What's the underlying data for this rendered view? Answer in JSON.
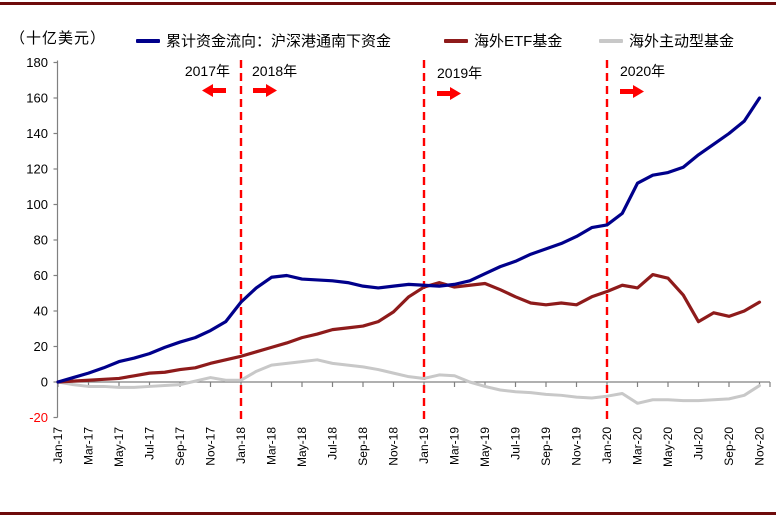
{
  "colors": {
    "accent_red": "#FF0000",
    "border_maroon": "#6E0B0B",
    "axis_gray": "#808080",
    "negative_tick_red": "#FF0000",
    "text_black": "#000000"
  },
  "header": {
    "unit_label": "（十亿美元）"
  },
  "legend": {
    "items": [
      {
        "label": "累计资金流向：沪深港通南下资金",
        "color": "#00008B"
      },
      {
        "label": "海外ETF基金",
        "color": "#8E1B1B"
      },
      {
        "label": "海外主动型基金",
        "color": "#C8C8C8"
      }
    ]
  },
  "annotations": {
    "y2017": {
      "label": "2017年",
      "arrow": "left"
    },
    "y2018": {
      "label": "2018年",
      "arrow": "right"
    },
    "y2019": {
      "label": "2019年",
      "arrow": "right"
    },
    "y2020": {
      "label": "2020年",
      "arrow": "right"
    }
  },
  "chart_data": {
    "type": "line",
    "title": "",
    "unit_label": "（十亿美元）",
    "ylim": [
      -20,
      180
    ],
    "ytick_step": 20,
    "grid": false,
    "legend_position": "top",
    "x_span": "Jan-17 to Nov-20, monthly points, labels every 2 months",
    "x_tick_labels": [
      "Jan-17",
      "Mar-17",
      "May-17",
      "Jul-17",
      "Sep-17",
      "Nov-17",
      "Jan-18",
      "Mar-18",
      "May-18",
      "Jul-18",
      "Sep-18",
      "Nov-18",
      "Jan-19",
      "Mar-19",
      "May-19",
      "Jul-19",
      "Sep-19",
      "Nov-19",
      "Jan-20",
      "Mar-20",
      "May-20",
      "Jul-20",
      "Sep-20",
      "Nov-20"
    ],
    "series": [
      {
        "name": "累计资金流向：沪深港通南下资金",
        "color": "#00008B",
        "monthly_values": [
          0,
          2.5,
          5,
          8,
          11.5,
          13.5,
          16,
          19.5,
          22.5,
          25,
          29,
          34,
          45,
          53,
          59,
          60,
          58,
          57.5,
          57,
          56,
          54,
          53,
          54,
          55,
          54.5,
          54,
          55,
          57,
          61,
          65,
          68,
          72,
          75,
          78,
          82,
          87,
          88.5,
          95,
          112,
          116.5,
          118,
          121,
          128,
          134,
          140,
          147,
          160
        ]
      },
      {
        "name": "海外ETF基金",
        "color": "#8E1B1B",
        "monthly_values": [
          0,
          0.5,
          1,
          1.5,
          2,
          3.5,
          5,
          5.5,
          7,
          8,
          10.5,
          12.5,
          14.5,
          17,
          19.5,
          22,
          25,
          27,
          29.5,
          30.5,
          31.5,
          34,
          39.5,
          48,
          53.5,
          56,
          53.5,
          54.5,
          55.5,
          52,
          48,
          44.5,
          43.5,
          44.5,
          43.5,
          48,
          51,
          54.5,
          53,
          60.5,
          58.5,
          49,
          34,
          39,
          37,
          40,
          45
        ]
      },
      {
        "name": "海外主动型基金",
        "color": "#C8C8C8",
        "monthly_values": [
          0,
          -1.5,
          -2.5,
          -2.5,
          -3,
          -3,
          -2.5,
          -2,
          -1.5,
          0.5,
          2.5,
          1,
          1,
          6,
          9.5,
          10.5,
          11.5,
          12.5,
          10.5,
          9.5,
          8.5,
          7,
          5,
          3,
          2,
          4,
          3.5,
          0,
          -2.5,
          -4.5,
          -5.5,
          -6,
          -7,
          -7.5,
          -8.5,
          -9,
          -8,
          -6.5,
          -12,
          -10,
          -10,
          -10.5,
          -10.5,
          -10,
          -9.5,
          -7.5,
          -2
        ]
      }
    ],
    "vlines": [
      {
        "at": "Jan-18",
        "month_index": 12
      },
      {
        "at": "Jan-19",
        "month_index": 24
      },
      {
        "at": "Jan-20",
        "month_index": 36
      }
    ]
  }
}
